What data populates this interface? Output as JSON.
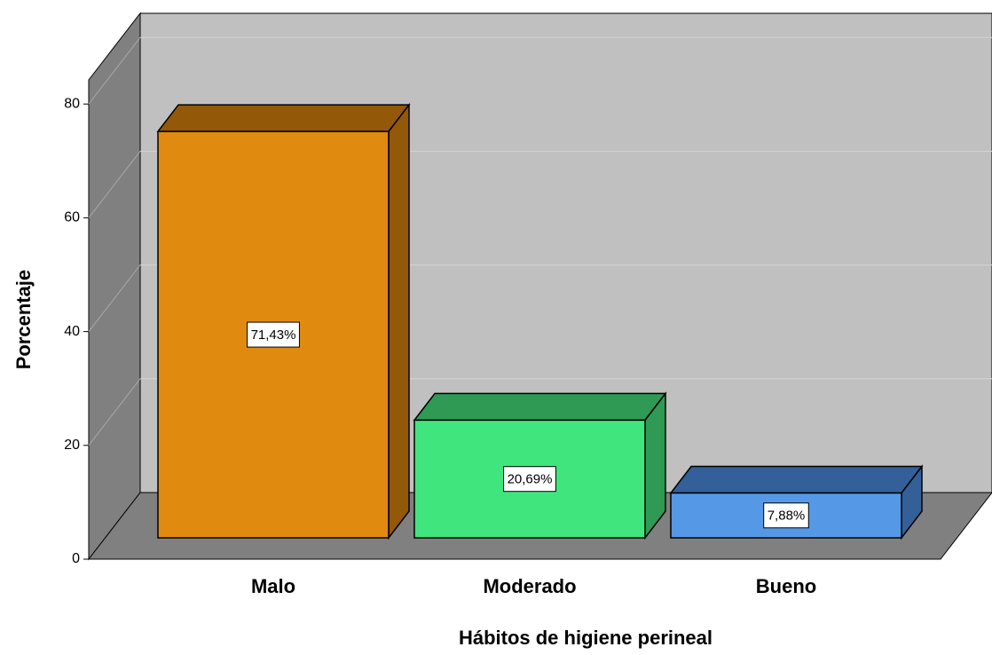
{
  "chart_data": {
    "type": "bar3d",
    "x_label": "Hábitos de higiene perineal",
    "y_label": "Porcentaje",
    "categories": [
      "Malo",
      "Moderado",
      "Bueno"
    ],
    "values": [
      71.43,
      20.69,
      7.88
    ],
    "value_labels": [
      "71,43%",
      "20,69%",
      "7,88%"
    ],
    "colors": [
      "#e08a10",
      "#40e67d",
      "#5599e6"
    ],
    "side_colors": [
      "#935808",
      "#2e9a54",
      "#336099"
    ],
    "ylim": [
      0,
      84
    ],
    "yticks": [
      0,
      20,
      40,
      60,
      80
    ],
    "grid": true
  }
}
